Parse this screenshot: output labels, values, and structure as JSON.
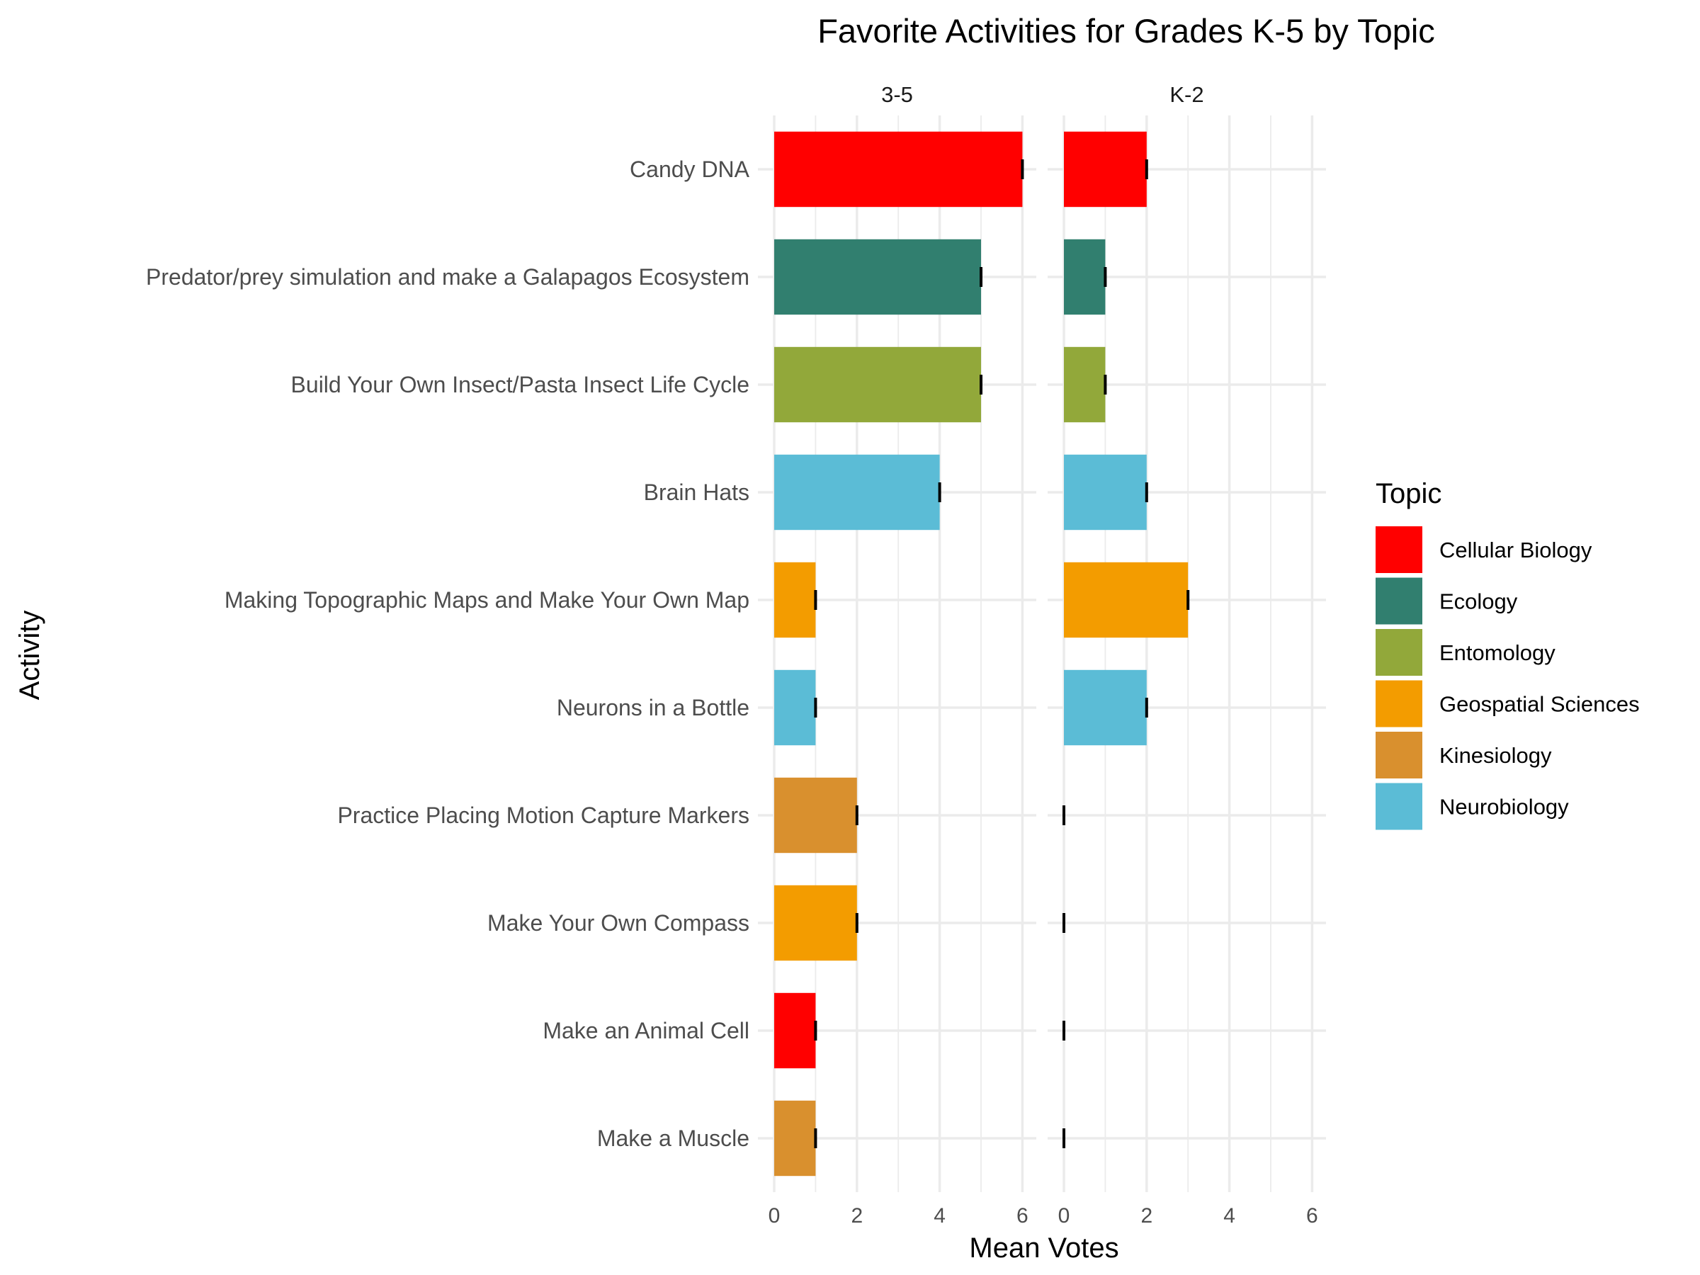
{
  "chart_data": {
    "type": "bar",
    "orientation": "horizontal",
    "title": "Favorite Activities for Grades K-5 by Topic",
    "xlabel": "Mean Votes",
    "ylabel": "Activity",
    "xlim": [
      0,
      6
    ],
    "xticks": [
      "0",
      "2",
      "4",
      "6"
    ],
    "grid": true,
    "legend_position": "right",
    "legend_title": "Topic",
    "topics": [
      {
        "name": "Cellular Biology",
        "color": "#FF0000"
      },
      {
        "name": "Ecology",
        "color": "#317F6F"
      },
      {
        "name": "Entomology",
        "color": "#92A83A"
      },
      {
        "name": "Geospatial Sciences",
        "color": "#F39C00"
      },
      {
        "name": "Kinesiology",
        "color": "#D9902E"
      },
      {
        "name": "Neurobiology",
        "color": "#5BBCD6"
      }
    ],
    "categories": [
      "Candy DNA",
      "Predator/prey simulation and make a Galapagos Ecosystem",
      "Build Your Own Insect/Pasta Insect Life Cycle",
      "Brain Hats",
      "Making Topographic Maps and Make Your Own Map",
      "Neurons in a Bottle",
      "Practice Placing Motion Capture Markers",
      "Make Your Own Compass",
      "Make an Animal Cell",
      "Make a Muscle"
    ],
    "category_topics": [
      "Cellular Biology",
      "Ecology",
      "Entomology",
      "Neurobiology",
      "Geospatial Sciences",
      "Neurobiology",
      "Kinesiology",
      "Geospatial Sciences",
      "Cellular Biology",
      "Kinesiology"
    ],
    "facets": [
      {
        "label": "3-5",
        "values": [
          6,
          5,
          5,
          4,
          1,
          1,
          2,
          2,
          1,
          1
        ]
      },
      {
        "label": "K-2",
        "values": [
          2,
          1,
          1,
          2,
          3,
          2,
          0,
          0,
          0,
          0
        ]
      }
    ]
  }
}
